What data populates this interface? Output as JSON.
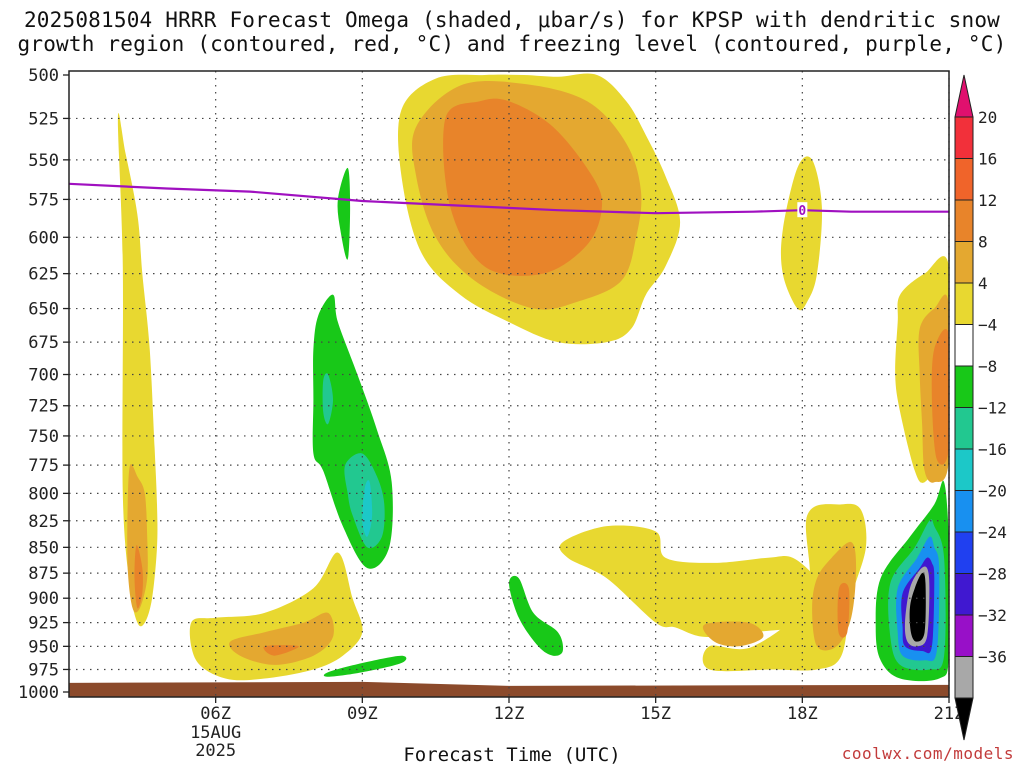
{
  "title_line1": "2025081504 HRRR Forecast Omega (shaded, μbar/s) for KPSP with dendritic snow",
  "title_line2": "growth region (contoured, red, °C) and freezing level (contoured, purple, °C)",
  "xlabel": "Forecast Time (UTC)",
  "credit": "coolwx.com/models",
  "date_label": [
    "15AUG",
    "2025"
  ],
  "freezing_label": "0",
  "colors": {
    "freezing": "#a010c0",
    "ground": "#8b4a2b"
  },
  "chart_data": {
    "type": "heatmap",
    "x_ticks": [
      "06Z",
      "09Z",
      "12Z",
      "15Z",
      "18Z",
      "21Z"
    ],
    "y_ticks": [
      500,
      525,
      550,
      575,
      600,
      625,
      650,
      675,
      700,
      725,
      750,
      775,
      800,
      825,
      850,
      875,
      900,
      925,
      950,
      975,
      1000
    ],
    "xlim_hours": [
      3.0,
      21.0
    ],
    "ylim_mb": [
      500,
      1000
    ],
    "grid": true,
    "colorbar": {
      "labels": [
        "20",
        "16",
        "12",
        "8",
        "4",
        "−4",
        "−8",
        "−12",
        "−16",
        "−20",
        "−24",
        "−28",
        "−32",
        "−36"
      ],
      "colors": [
        "#e0106e",
        "#f2303a",
        "#f0642a",
        "#e8842a",
        "#e4a830",
        "#e8d830",
        "#ffffff",
        "#18c818",
        "#22c890",
        "#1cc8c8",
        "#1890f0",
        "#2040f0",
        "#4018d0",
        "#9810c8",
        "#a8a8a8",
        "#000000"
      ]
    },
    "freezing_level": {
      "hours": [
        3.0,
        5.0,
        6.7,
        9.0,
        11.0,
        13.0,
        15.0,
        17.0,
        18.0,
        19.0,
        21.0
      ],
      "mb": [
        565,
        568,
        570,
        576,
        579,
        582,
        584,
        583,
        582,
        583,
        583
      ]
    },
    "regions": [
      {
        "sign": "up",
        "level": 4,
        "hours": [
          4.0,
          4.15,
          4.4,
          4.5,
          4.65,
          4.75,
          4.8,
          4.8,
          4.7,
          4.55,
          4.4,
          4.25,
          4.1,
          4.1
        ],
        "mb": [
          525,
          545,
          585,
          625,
          680,
          760,
          810,
          850,
          900,
          925,
          925,
          890,
          800,
          620
        ]
      },
      {
        "sign": "up",
        "level": 8,
        "hours": [
          4.25,
          4.4,
          4.55,
          4.6,
          4.6,
          4.45,
          4.3,
          4.2,
          4.2
        ],
        "mb": [
          775,
          785,
          800,
          840,
          880,
          910,
          910,
          870,
          810
        ]
      },
      {
        "sign": "up",
        "level": 12,
        "hours": [
          4.38,
          4.5,
          4.5,
          4.4,
          4.34
        ],
        "mb": [
          848,
          870,
          895,
          910,
          880
        ]
      },
      {
        "sign": "up",
        "level": 4,
        "hours": [
          5.5,
          6.0,
          7.0,
          8.0,
          8.5,
          8.8,
          9.0,
          8.6,
          8.0,
          7.0,
          6.2,
          5.6
        ],
        "mb": [
          925,
          920,
          915,
          890,
          855,
          900,
          935,
          960,
          975,
          985,
          985,
          965
        ]
      },
      {
        "sign": "up",
        "level": 8,
        "hours": [
          6.3,
          7.0,
          7.8,
          8.3,
          8.4,
          8.0,
          7.2,
          6.5
        ],
        "mb": [
          945,
          935,
          925,
          915,
          940,
          960,
          970,
          960
        ]
      },
      {
        "sign": "up",
        "level": 12,
        "hours": [
          7.0,
          7.7,
          7.2
        ],
        "mb": [
          950,
          950,
          960
        ]
      },
      {
        "sign": "up",
        "level": 4,
        "hours": [
          9.8,
          10.5,
          11.5,
          12.3,
          13.0,
          13.8,
          14.4,
          14.8,
          15.2,
          15.5,
          15.2,
          14.8,
          14.5,
          14.0,
          13.0,
          12.0,
          11.0,
          10.2,
          9.8
        ],
        "mb": [
          520,
          502,
          500,
          500,
          501,
          500,
          515,
          535,
          560,
          590,
          620,
          640,
          665,
          675,
          675,
          660,
          640,
          610,
          560
        ]
      },
      {
        "sign": "up",
        "level": 8,
        "hours": [
          10.1,
          11.0,
          12.3,
          13.6,
          14.4,
          14.7,
          14.6,
          14.3,
          13.4,
          12.5,
          11.3,
          10.5,
          10.1
        ],
        "mb": [
          530,
          506,
          505,
          515,
          540,
          570,
          600,
          630,
          645,
          650,
          630,
          600,
          560
        ]
      },
      {
        "sign": "up",
        "level": 12,
        "hours": [
          10.7,
          11.4,
          12.0,
          12.9,
          13.7,
          13.9,
          13.6,
          12.7,
          11.5,
          10.8
        ],
        "mb": [
          525,
          515,
          515,
          530,
          560,
          580,
          605,
          625,
          620,
          580
        ]
      },
      {
        "sign": "up",
        "level": 4,
        "hours": [
          13.1,
          14.0,
          15.0,
          15.2,
          16.2,
          17.3,
          17.8,
          18.3,
          18.6,
          18.5,
          17.0,
          16.0,
          15.4,
          15.0,
          14.0,
          13.2
        ],
        "mb": [
          845,
          830,
          835,
          860,
          865,
          860,
          860,
          880,
          900,
          925,
          935,
          940,
          930,
          925,
          880,
          860
        ]
      },
      {
        "sign": "up",
        "level": 8,
        "hours": [
          16.0,
          16.9,
          17.2,
          16.7,
          16.2
        ],
        "mb": [
          927,
          925,
          940,
          950,
          945
        ]
      },
      {
        "sign": "up",
        "level": 4,
        "hours": [
          18.1,
          18.8,
          19.2,
          19.3,
          19.0,
          18.8,
          18.3,
          17.4,
          16.1,
          16.1,
          17.0,
          18.1
        ],
        "mb": [
          820,
          810,
          815,
          850,
          900,
          960,
          975,
          975,
          975,
          950,
          950,
          900
        ]
      },
      {
        "sign": "up",
        "level": 8,
        "hours": [
          18.6,
          19.0,
          19.1,
          19.0,
          18.7,
          18.3,
          18.2,
          18.3
        ],
        "mb": [
          860,
          845,
          870,
          920,
          950,
          950,
          910,
          880
        ]
      },
      {
        "sign": "up",
        "level": 12,
        "hours": [
          18.75,
          18.95,
          18.92,
          18.74
        ],
        "mb": [
          890,
          890,
          935,
          935
        ]
      },
      {
        "sign": "up",
        "level": 4,
        "hours": [
          17.6,
          17.9,
          18.2,
          18.4,
          18.3,
          18.1,
          17.9,
          17.6
        ],
        "mb": [
          595,
          555,
          550,
          580,
          625,
          645,
          650,
          625
        ]
      },
      {
        "sign": "up",
        "level": 4,
        "hours": [
          20.0,
          20.5,
          21.0,
          21.0,
          20.8,
          20.5,
          20.3,
          20.0,
          19.9,
          19.95
        ],
        "mb": [
          640,
          625,
          620,
          740,
          770,
          790,
          780,
          730,
          700,
          660
        ]
      },
      {
        "sign": "up",
        "level": 8,
        "hours": [
          20.4,
          20.7,
          21.0,
          21.0,
          20.7,
          20.5,
          20.45,
          20.4
        ],
        "mb": [
          665,
          650,
          648,
          770,
          790,
          780,
          740,
          700
        ]
      },
      {
        "sign": "up",
        "level": 12,
        "hours": [
          20.7,
          21.0,
          21.0,
          20.75,
          20.65
        ],
        "mb": [
          680,
          670,
          760,
          770,
          720
        ]
      },
      {
        "sign": "down",
        "level": -4,
        "hours": [
          8.0,
          8.1,
          8.4,
          8.5,
          8.9,
          9.3,
          9.6,
          9.55,
          9.1,
          8.6,
          8.2,
          8.0,
          8.0
        ],
        "mb": [
          680,
          655,
          640,
          660,
          700,
          745,
          790,
          850,
          870,
          830,
          780,
          765,
          720
        ]
      },
      {
        "sign": "down",
        "level": -4,
        "hours": [
          8.5,
          8.7,
          8.75,
          8.7,
          8.55
        ],
        "mb": [
          575,
          555,
          580,
          615,
          595
        ]
      },
      {
        "sign": "down",
        "level": -8,
        "hours": [
          8.65,
          9.0,
          9.3,
          9.45,
          9.4,
          9.1,
          8.8,
          8.7
        ],
        "mb": [
          775,
          765,
          785,
          810,
          840,
          850,
          820,
          800
        ]
      },
      {
        "sign": "down",
        "level": -12,
        "hours": [
          9.05,
          9.15,
          9.2,
          9.1,
          9.0
        ],
        "mb": [
          795,
          790,
          820,
          840,
          825
        ]
      },
      {
        "sign": "down",
        "level": -8,
        "hours": [
          8.2,
          8.3,
          8.4,
          8.3,
          8.2
        ],
        "mb": [
          705,
          700,
          720,
          740,
          730
        ]
      },
      {
        "sign": "down",
        "level": -4,
        "hours": [
          12.0,
          12.2,
          12.5,
          13.0,
          13.1,
          12.9,
          12.6,
          12.2
        ],
        "mb": [
          885,
          880,
          915,
          935,
          955,
          960,
          950,
          920
        ]
      },
      {
        "sign": "down",
        "level": -4,
        "hours": [
          8.3,
          9.0,
          9.8,
          9.8,
          9.0,
          8.3
        ],
        "mb": [
          978,
          968,
          960,
          968,
          978,
          983
        ]
      },
      {
        "sign": "down",
        "level": -4,
        "hours": [
          19.6,
          20.2,
          20.7,
          20.9,
          21.0,
          21.0,
          20.8,
          20.0,
          19.6,
          19.5
        ],
        "mb": [
          880,
          840,
          810,
          790,
          850,
          960,
          985,
          985,
          965,
          930
        ]
      },
      {
        "sign": "down",
        "level": -8,
        "hours": [
          19.8,
          20.3,
          20.6,
          20.7,
          20.9,
          20.9,
          20.6,
          20.0,
          19.8
        ],
        "mb": [
          885,
          850,
          825,
          830,
          860,
          960,
          975,
          970,
          940
        ]
      },
      {
        "sign": "down",
        "level": -16,
        "hours": [
          19.95,
          20.35,
          20.6,
          20.7,
          20.8,
          20.75,
          20.5,
          20.05,
          19.95
        ],
        "mb": [
          890,
          860,
          840,
          850,
          870,
          955,
          965,
          960,
          935
        ]
      },
      {
        "sign": "down",
        "level": -24,
        "hours": [
          20.05,
          20.4,
          20.55,
          20.65,
          20.7,
          20.65,
          20.45,
          20.1,
          20.05
        ],
        "mb": [
          895,
          870,
          860,
          865,
          880,
          950,
          955,
          950,
          930
        ]
      },
      {
        "sign": "down",
        "level": -32,
        "hours": [
          20.2,
          20.4,
          20.55,
          20.6,
          20.55,
          20.35,
          20.15,
          20.1
        ],
        "mb": [
          890,
          872,
          870,
          890,
          940,
          950,
          945,
          925
        ]
      },
      {
        "sign": "down",
        "level": -36,
        "hours": [
          20.3,
          20.45,
          20.52,
          20.5,
          20.33,
          20.22,
          20.2
        ],
        "mb": [
          890,
          875,
          885,
          935,
          945,
          935,
          910
        ]
      }
    ]
  }
}
